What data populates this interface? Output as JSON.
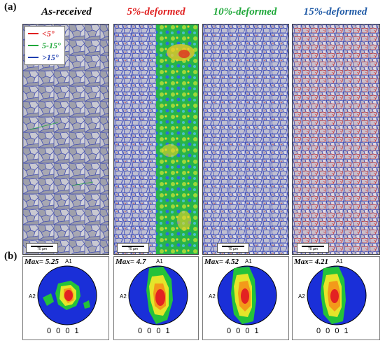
{
  "panel_labels": {
    "a": "(a)",
    "b": "(b)"
  },
  "columns": [
    {
      "title": "As-received",
      "color": "#000000",
      "max_label": "Max= 5.25",
      "scale_bar": "70 µm"
    },
    {
      "title": "5%-deformed",
      "color": "#e02020",
      "max_label": "Max= 4.7",
      "scale_bar": "70 µm"
    },
    {
      "title": "10%-deformed",
      "color": "#1fa83a",
      "max_label": "Max= 4.52",
      "scale_bar": "70 µm"
    },
    {
      "title": "15%-deformed",
      "color": "#1f5aa6",
      "max_label": "Max= 4.21",
      "scale_bar": "70 µm"
    }
  ],
  "legend": [
    {
      "label": "<5°",
      "color": "#e02020"
    },
    {
      "label": "5-15°",
      "color": "#1fa83a"
    },
    {
      "label": ">15°",
      "color": "#1f3fb0"
    }
  ],
  "pole_figure": {
    "top_axis": "A1",
    "left_axis": "A2",
    "index": "0 0 0 1"
  }
}
